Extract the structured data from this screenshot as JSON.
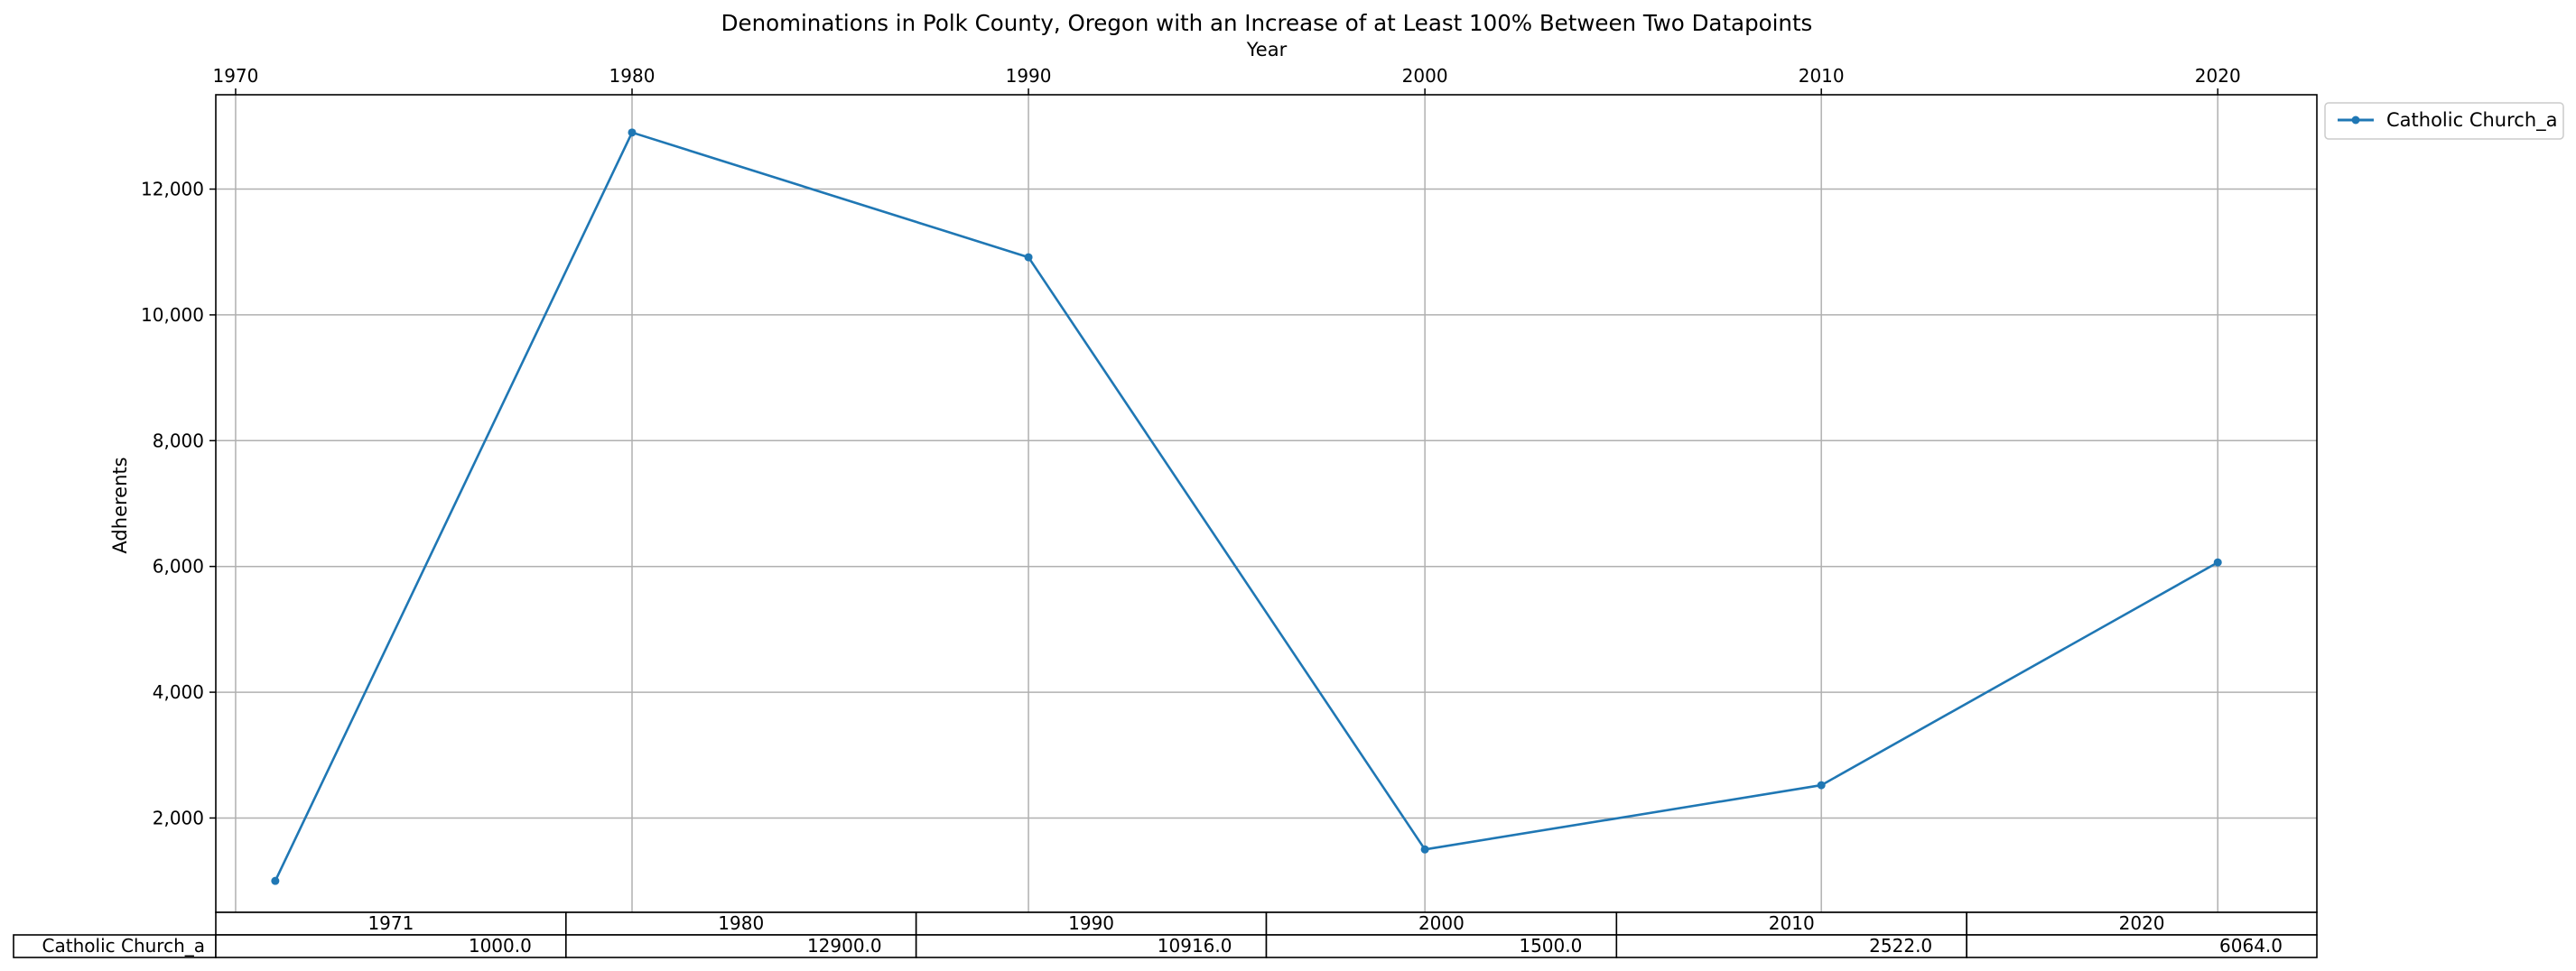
{
  "chart_data": {
    "type": "line",
    "title": "Denominations in Polk County, Oregon with an Increase of at Least 100% Between Two Datapoints",
    "xlabel": "Year",
    "ylabel": "Adherents",
    "x": [
      1971,
      1980,
      1990,
      2000,
      2010,
      2020
    ],
    "series": [
      {
        "name": "Catholic Church_a",
        "values": [
          1000.0,
          12900.0,
          10916.0,
          1500.0,
          2522.0,
          6064.0
        ],
        "color": "#1f77b4"
      }
    ],
    "xlim": [
      1969.5,
      2022.5
    ],
    "ylim": [
      500,
      13500
    ],
    "x_ticks": [
      1970,
      1980,
      1990,
      2000,
      2010,
      2020
    ],
    "x_tick_labels": [
      "1970",
      "1980",
      "1990",
      "2000",
      "2010",
      "2020"
    ],
    "y_ticks": [
      2000,
      4000,
      6000,
      8000,
      10000,
      12000
    ],
    "y_tick_labels": [
      "2,000",
      "4,000",
      "6,000",
      "8,000",
      "10,000",
      "12,000"
    ],
    "x_axis_position": "top",
    "grid": true,
    "legend": {
      "placement": "outside-top-right",
      "entries": [
        "Catholic Church_a"
      ]
    },
    "table": {
      "columns": [
        "1971",
        "1980",
        "1990",
        "2000",
        "2010",
        "2020"
      ],
      "rows": [
        {
          "label": "Catholic Church_a",
          "cells": [
            "1000.0",
            "12900.0",
            "10916.0",
            "1500.0",
            "2522.0",
            "6064.0"
          ]
        }
      ]
    }
  }
}
